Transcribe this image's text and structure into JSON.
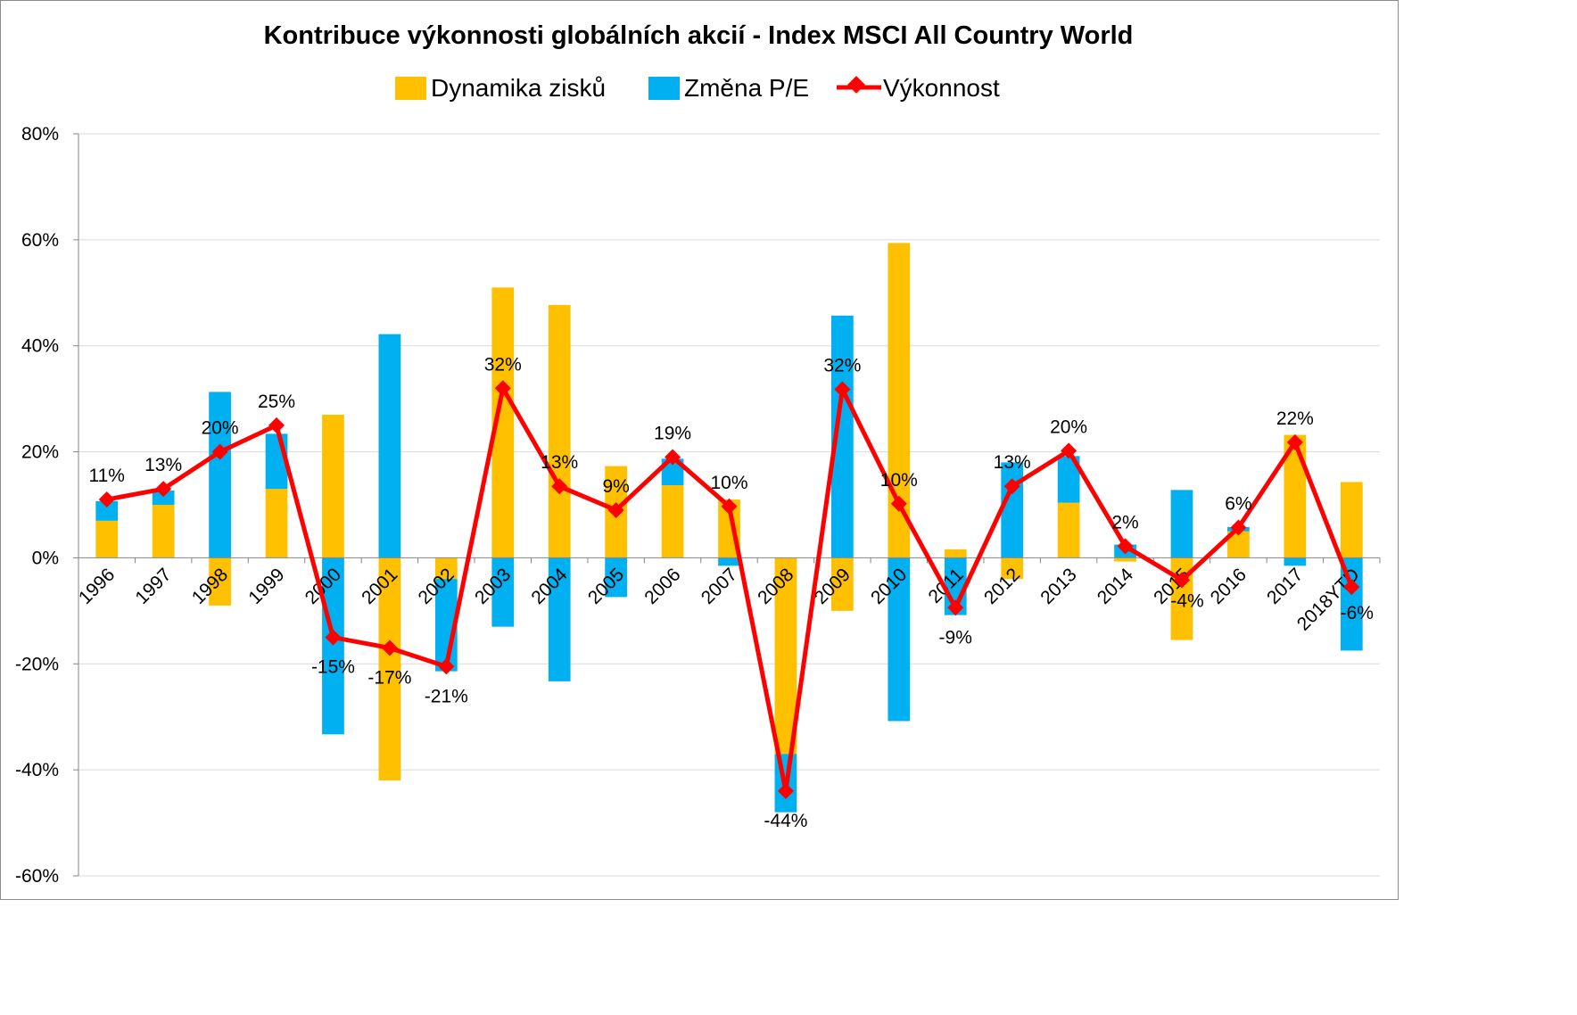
{
  "colors": {
    "earnings": "#FFC000",
    "pe_change": "#00B0F0",
    "performance": "#FF0000",
    "grid": "#D9D9D9",
    "axis": "#868686"
  },
  "chart_data": {
    "type": "bar",
    "title": "Kontribuce výkonnosti globálních akcií - Index MSCI All Country World",
    "xlabel": "",
    "ylabel": "",
    "ylim": [
      -0.6,
      0.8
    ],
    "y_ticks": [
      {
        "value": 0.8,
        "label": "80%"
      },
      {
        "value": 0.6,
        "label": "60%"
      },
      {
        "value": 0.4,
        "label": "40%"
      },
      {
        "value": 0.2,
        "label": "20%"
      },
      {
        "value": 0.0,
        "label": "0%"
      },
      {
        "value": -0.2,
        "label": "-20%"
      },
      {
        "value": -0.4,
        "label": "-40%"
      },
      {
        "value": -0.6,
        "label": "-60%"
      }
    ],
    "grid": true,
    "legend_position": "top",
    "categories": [
      "1996",
      "1997",
      "1998",
      "1999",
      "2000",
      "2001",
      "2002",
      "2003",
      "2004",
      "2005",
      "2006",
      "2007",
      "2008",
      "2009",
      "2010",
      "2011",
      "2012",
      "2013",
      "2014",
      "2015",
      "2016",
      "2017",
      "2018YTD"
    ],
    "series": [
      {
        "name": "Dynamika zisků",
        "kind": "bar",
        "color": "#FFC000",
        "values": [
          0.07,
          0.1,
          -0.09,
          0.13,
          0.27,
          -0.42,
          -0.04,
          0.51,
          0.477,
          0.173,
          0.137,
          0.11,
          -0.37,
          -0.1,
          0.594,
          0.016,
          -0.04,
          0.104,
          -0.007,
          -0.155,
          0.05,
          0.232,
          0.143
        ]
      },
      {
        "name": "Změna P/E",
        "kind": "bar",
        "color": "#00B0F0",
        "values": [
          0.037,
          0.027,
          0.313,
          0.104,
          -0.333,
          0.422,
          -0.174,
          -0.13,
          -0.233,
          -0.074,
          0.05,
          -0.015,
          -0.11,
          0.457,
          -0.308,
          -0.108,
          0.18,
          0.088,
          0.025,
          0.128,
          0.008,
          -0.015,
          -0.175
        ]
      },
      {
        "name": "Výkonnost",
        "kind": "line",
        "color": "#FF0000",
        "values": [
          0.11,
          0.13,
          0.2,
          0.25,
          -0.15,
          -0.17,
          -0.205,
          0.32,
          0.135,
          0.09,
          0.19,
          0.097,
          -0.44,
          0.318,
          0.102,
          -0.094,
          0.135,
          0.202,
          0.022,
          -0.042,
          0.057,
          0.218,
          -0.055
        ],
        "labels": [
          "11%",
          "13%",
          "20%",
          "25%",
          "-15%",
          "-17%",
          "-21%",
          "32%",
          "13%",
          "9%",
          "19%",
          "10%",
          "-44%",
          "32%",
          "10%",
          "-9%",
          "13%",
          "20%",
          "2%",
          "-4%",
          "6%",
          "22%",
          "-6%"
        ]
      }
    ]
  }
}
